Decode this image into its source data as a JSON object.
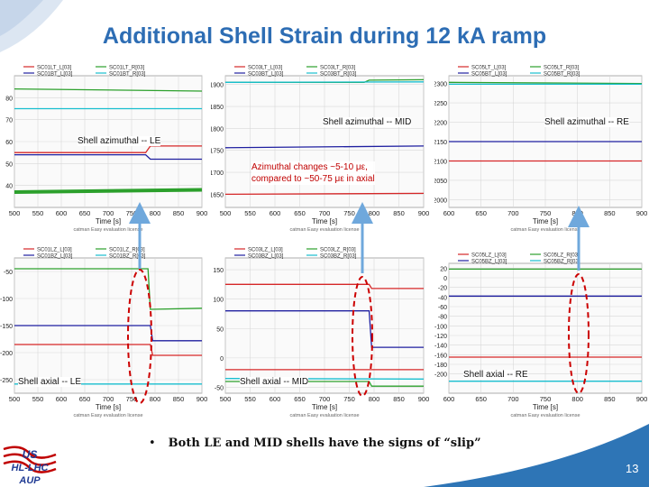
{
  "title": "Additional Shell Strain during 12 kA ramp",
  "footnote": {
    "bullet": "•",
    "text": "Both LE and MID shells have the signs of “slip”"
  },
  "page_number": "13",
  "logo_lines": [
    "US",
    "HL-LHC",
    "AUP"
  ],
  "callout": [
    "Azimuthal changes ~5-10 με,",
    "compared to ~50-75 με in axial"
  ],
  "panel_labels": {
    "azi_le": "Shell azimuthal -- LE",
    "azi_mid": "Shell azimuthal -- MID",
    "azi_re": "Shell azimuthal -- RE",
    "ax_le": "Shell axial -- LE",
    "ax_mid": "Shell axial -- MID",
    "ax_re": "Shell axial -- RE"
  },
  "colors": {
    "title": "#2d6db4",
    "callout": "#c00000",
    "marker": "#cc0000",
    "arrow": "#6fa8dc",
    "footer_band": "#2e75b6"
  },
  "chart_data": [
    {
      "id": "azi_le",
      "type": "line",
      "legend": [
        "SC01LT_L[03]",
        "SC01LT_R[03]",
        "SC01BT_L[03]",
        "SC01BT_R[03]"
      ],
      "xlabel": "Time [s]",
      "xlim": [
        500,
        900
      ],
      "xticks": [
        500,
        550,
        600,
        650,
        700,
        750,
        800,
        850,
        900
      ],
      "ylim": [
        30,
        90
      ],
      "yticks": [
        40,
        50,
        60,
        70,
        80
      ],
      "watermark": "catman Easy evaluation license",
      "series": [
        {
          "color": "#2ca02c",
          "x": [
            500,
            900
          ],
          "y": [
            84,
            83
          ]
        },
        {
          "color": "#17becf",
          "x": [
            500,
            900
          ],
          "y": [
            75,
            75
          ]
        },
        {
          "color": "#1f1fa0",
          "x": [
            500,
            780,
            790,
            900
          ],
          "y": [
            54,
            54,
            52,
            52
          ]
        },
        {
          "color": "#d62728",
          "x": [
            500,
            780,
            790,
            900
          ],
          "y": [
            55,
            55,
            58,
            58
          ]
        },
        {
          "color": "#2ca02c",
          "x": [
            500,
            900
          ],
          "y": [
            37,
            38
          ]
        }
      ]
    },
    {
      "id": "azi_mid",
      "type": "line",
      "legend": [
        "SC03LT_L[03]",
        "SC03LT_R[03]",
        "SC03BT_L[03]",
        "SC03BT_R[03]"
      ],
      "xlabel": "Time [s]",
      "xlim": [
        500,
        900
      ],
      "xticks": [
        500,
        550,
        600,
        650,
        700,
        750,
        800,
        850,
        900
      ],
      "ylim": [
        1620,
        1920
      ],
      "yticks": [
        1650,
        1700,
        1750,
        1800,
        1850,
        1900
      ],
      "watermark": "catman Easy evaluation license",
      "series": [
        {
          "color": "#2ca02c",
          "x": [
            500,
            780,
            790,
            900
          ],
          "y": [
            1905,
            1905,
            1910,
            1911
          ]
        },
        {
          "color": "#17becf",
          "x": [
            500,
            900
          ],
          "y": [
            1905,
            1906
          ]
        },
        {
          "color": "#1f1fa0",
          "x": [
            500,
            900
          ],
          "y": [
            1756,
            1760
          ]
        },
        {
          "color": "#d62728",
          "x": [
            500,
            900
          ],
          "y": [
            1650,
            1652
          ]
        }
      ]
    },
    {
      "id": "azi_re",
      "type": "line",
      "legend": [
        "SC05LT_L[03]",
        "SC05LT_R[03]",
        "SC05BT_L[03]",
        "SC05BT_R[03]"
      ],
      "xlabel": "Time [s]",
      "xlim": [
        600,
        900
      ],
      "xticks": [
        600,
        650,
        700,
        750,
        800,
        850,
        900
      ],
      "ylim": [
        1980,
        2320
      ],
      "yticks": [
        2000,
        2050,
        2100,
        2150,
        2200,
        2250,
        2300
      ],
      "watermark": "catman Easy evaluation license",
      "series": [
        {
          "color": "#2ca02c",
          "x": [
            600,
            900
          ],
          "y": [
            2303,
            2300
          ]
        },
        {
          "color": "#17becf",
          "x": [
            600,
            900
          ],
          "y": [
            2298,
            2298
          ]
        },
        {
          "color": "#1f1fa0",
          "x": [
            600,
            900
          ],
          "y": [
            2150,
            2150
          ]
        },
        {
          "color": "#d62728",
          "x": [
            600,
            900
          ],
          "y": [
            2100,
            2100
          ]
        }
      ]
    },
    {
      "id": "ax_le",
      "type": "line",
      "legend": [
        "SC01LZ_L[03]",
        "SC01LZ_R[03]",
        "SC01BZ_L[03]",
        "SC01BZ_R[03]"
      ],
      "xlabel": "Time [s]",
      "xlim": [
        500,
        900
      ],
      "xticks": [
        500,
        550,
        600,
        650,
        700,
        750,
        800,
        850,
        900
      ],
      "ylim": [
        -275,
        -25
      ],
      "yticks": [
        -250,
        -200,
        -150,
        -100,
        -50
      ],
      "watermark": "catman Easy evaluation license",
      "series": [
        {
          "color": "#2ca02c",
          "x": [
            500,
            785,
            790,
            900
          ],
          "y": [
            -45,
            -45,
            -120,
            -118
          ]
        },
        {
          "color": "#1f1fa0",
          "x": [
            500,
            790,
            795,
            900
          ],
          "y": [
            -150,
            -150,
            -178,
            -178
          ]
        },
        {
          "color": "#d62728",
          "x": [
            500,
            790,
            795,
            900
          ],
          "y": [
            -185,
            -185,
            -205,
            -205
          ]
        },
        {
          "color": "#17becf",
          "x": [
            500,
            900
          ],
          "y": [
            -258,
            -258
          ]
        }
      ]
    },
    {
      "id": "ax_mid",
      "type": "line",
      "legend": [
        "SC03LZ_L[03]",
        "SC03LZ_R[03]",
        "SC03BZ_L[03]",
        "SC03BZ_R[03]"
      ],
      "xlabel": "Time [s]",
      "xlim": [
        500,
        900
      ],
      "xticks": [
        500,
        550,
        600,
        650,
        700,
        750,
        800,
        850,
        900
      ],
      "ylim": [
        -60,
        170
      ],
      "yticks": [
        -50,
        0,
        50,
        100,
        150
      ],
      "watermark": "catman Easy evaluation license",
      "series": [
        {
          "color": "#d62728",
          "x": [
            500,
            790,
            795,
            900
          ],
          "y": [
            125,
            125,
            118,
            118
          ]
        },
        {
          "color": "#1f1fa0",
          "x": [
            500,
            790,
            795,
            900
          ],
          "y": [
            80,
            80,
            18,
            18
          ]
        },
        {
          "color": "#d62728",
          "x": [
            500,
            900
          ],
          "y": [
            -20,
            -20
          ]
        },
        {
          "color": "#17becf",
          "x": [
            500,
            900
          ],
          "y": [
            -35,
            -36
          ]
        },
        {
          "color": "#2ca02c",
          "x": [
            500,
            790,
            795,
            900
          ],
          "y": [
            -40,
            -40,
            -48,
            -48
          ]
        }
      ]
    },
    {
      "id": "ax_re",
      "type": "line",
      "legend": [
        "SC05LZ_L[03]",
        "SC05LZ_R[03]",
        "SC05BZ_L[03]",
        "SC05BZ_R[03]"
      ],
      "xlabel": "Time [s]",
      "xlim": [
        600,
        900
      ],
      "xticks": [
        600,
        650,
        700,
        750,
        800,
        850,
        900
      ],
      "ylim": [
        -240,
        30
      ],
      "yticks": [
        -200,
        -180,
        -160,
        -140,
        -120,
        -100,
        -80,
        -60,
        -40,
        -20,
        0,
        20
      ],
      "watermark": "catman Easy evaluation license",
      "series": [
        {
          "color": "#2ca02c",
          "x": [
            600,
            900
          ],
          "y": [
            18,
            18
          ]
        },
        {
          "color": "#1f1fa0",
          "x": [
            600,
            900
          ],
          "y": [
            -38,
            -38
          ]
        },
        {
          "color": "#d62728",
          "x": [
            600,
            900
          ],
          "y": [
            -165,
            -165
          ]
        },
        {
          "color": "#17becf",
          "x": [
            600,
            900
          ],
          "y": [
            -215,
            -215
          ]
        }
      ]
    }
  ]
}
